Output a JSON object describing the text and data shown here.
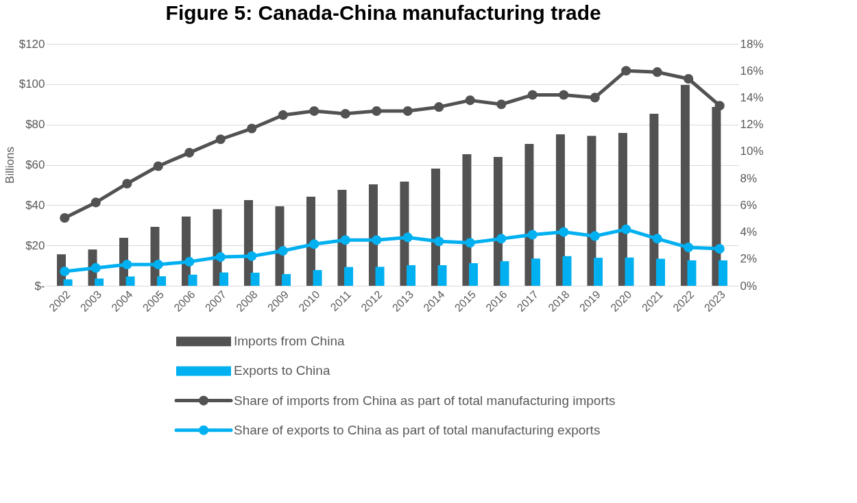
{
  "chart_data": {
    "type": "bar",
    "title": "Figure 5: Canada-China manufacturing trade",
    "ylabel": "Billions",
    "categories": [
      "2002",
      "2003",
      "2004",
      "2005",
      "2006",
      "2007",
      "2008",
      "2009",
      "2010",
      "2011",
      "2012",
      "2013",
      "2014",
      "2015",
      "2016",
      "2017",
      "2018",
      "2019",
      "2020",
      "2021",
      "2022",
      "2023"
    ],
    "series": [
      {
        "name": "Imports from China",
        "color": "#525252",
        "values": [
          15.6,
          18,
          23.8,
          29.2,
          34.3,
          38,
          42.5,
          39.4,
          44.2,
          47.6,
          50.3,
          51.7,
          58.1,
          65.3,
          63.9,
          70.4,
          75.1,
          74.4,
          75.8,
          85.3,
          99.6,
          88.7
        ]
      },
      {
        "name": "Exports to China",
        "color": "#00b0f0",
        "values": [
          3.2,
          3.6,
          4.6,
          4.7,
          5.5,
          6.6,
          6.5,
          5.8,
          7.8,
          9.3,
          9.4,
          10.2,
          10.2,
          11.2,
          12.2,
          13.5,
          14.7,
          13.9,
          14,
          13.4,
          12.6,
          12.6
        ]
      },
      {
        "name": "Share of imports from China as part of total manufacturing imports",
        "type": "line",
        "axis": "y2",
        "color": "#525252",
        "values": [
          5.05,
          6.2,
          7.6,
          8.9,
          9.9,
          10.9,
          11.7,
          12.7,
          13,
          12.8,
          13,
          13,
          13.3,
          13.8,
          13.5,
          14.2,
          14.2,
          14,
          16,
          15.9,
          15.4,
          13.4
        ]
      },
      {
        "name": "Share of exports to China as part of total manufacturing exports",
        "type": "line",
        "axis": "y2",
        "color": "#00b0f0",
        "values": [
          1.07,
          1.33,
          1.58,
          1.58,
          1.79,
          2.14,
          2.2,
          2.6,
          3.1,
          3.4,
          3.4,
          3.6,
          3.3,
          3.2,
          3.5,
          3.8,
          4,
          3.7,
          4.2,
          3.5,
          2.85,
          2.75
        ]
      }
    ],
    "ylim": [
      0,
      120
    ],
    "yticks": [
      {
        "value": 0,
        "label": "$-"
      },
      {
        "value": 20,
        "label": "$20"
      },
      {
        "value": 40,
        "label": "$40"
      },
      {
        "value": 60,
        "label": "$60"
      },
      {
        "value": 80,
        "label": "$80"
      },
      {
        "value": 100,
        "label": "$100"
      },
      {
        "value": 120,
        "label": "$120"
      }
    ],
    "y2lim": [
      0,
      18
    ],
    "y2ticks": [
      {
        "value": 0,
        "label": "0%"
      },
      {
        "value": 2,
        "label": "2%"
      },
      {
        "value": 4,
        "label": "4%"
      },
      {
        "value": 6,
        "label": "6%"
      },
      {
        "value": 8,
        "label": "8%"
      },
      {
        "value": 10,
        "label": "10%"
      },
      {
        "value": 12,
        "label": "12%"
      },
      {
        "value": 14,
        "label": "14%"
      },
      {
        "value": 16,
        "label": "16%"
      },
      {
        "value": 18,
        "label": "18%"
      }
    ],
    "grid": "y",
    "marker": "circle",
    "line_style": "solid",
    "legend": "bottom"
  }
}
